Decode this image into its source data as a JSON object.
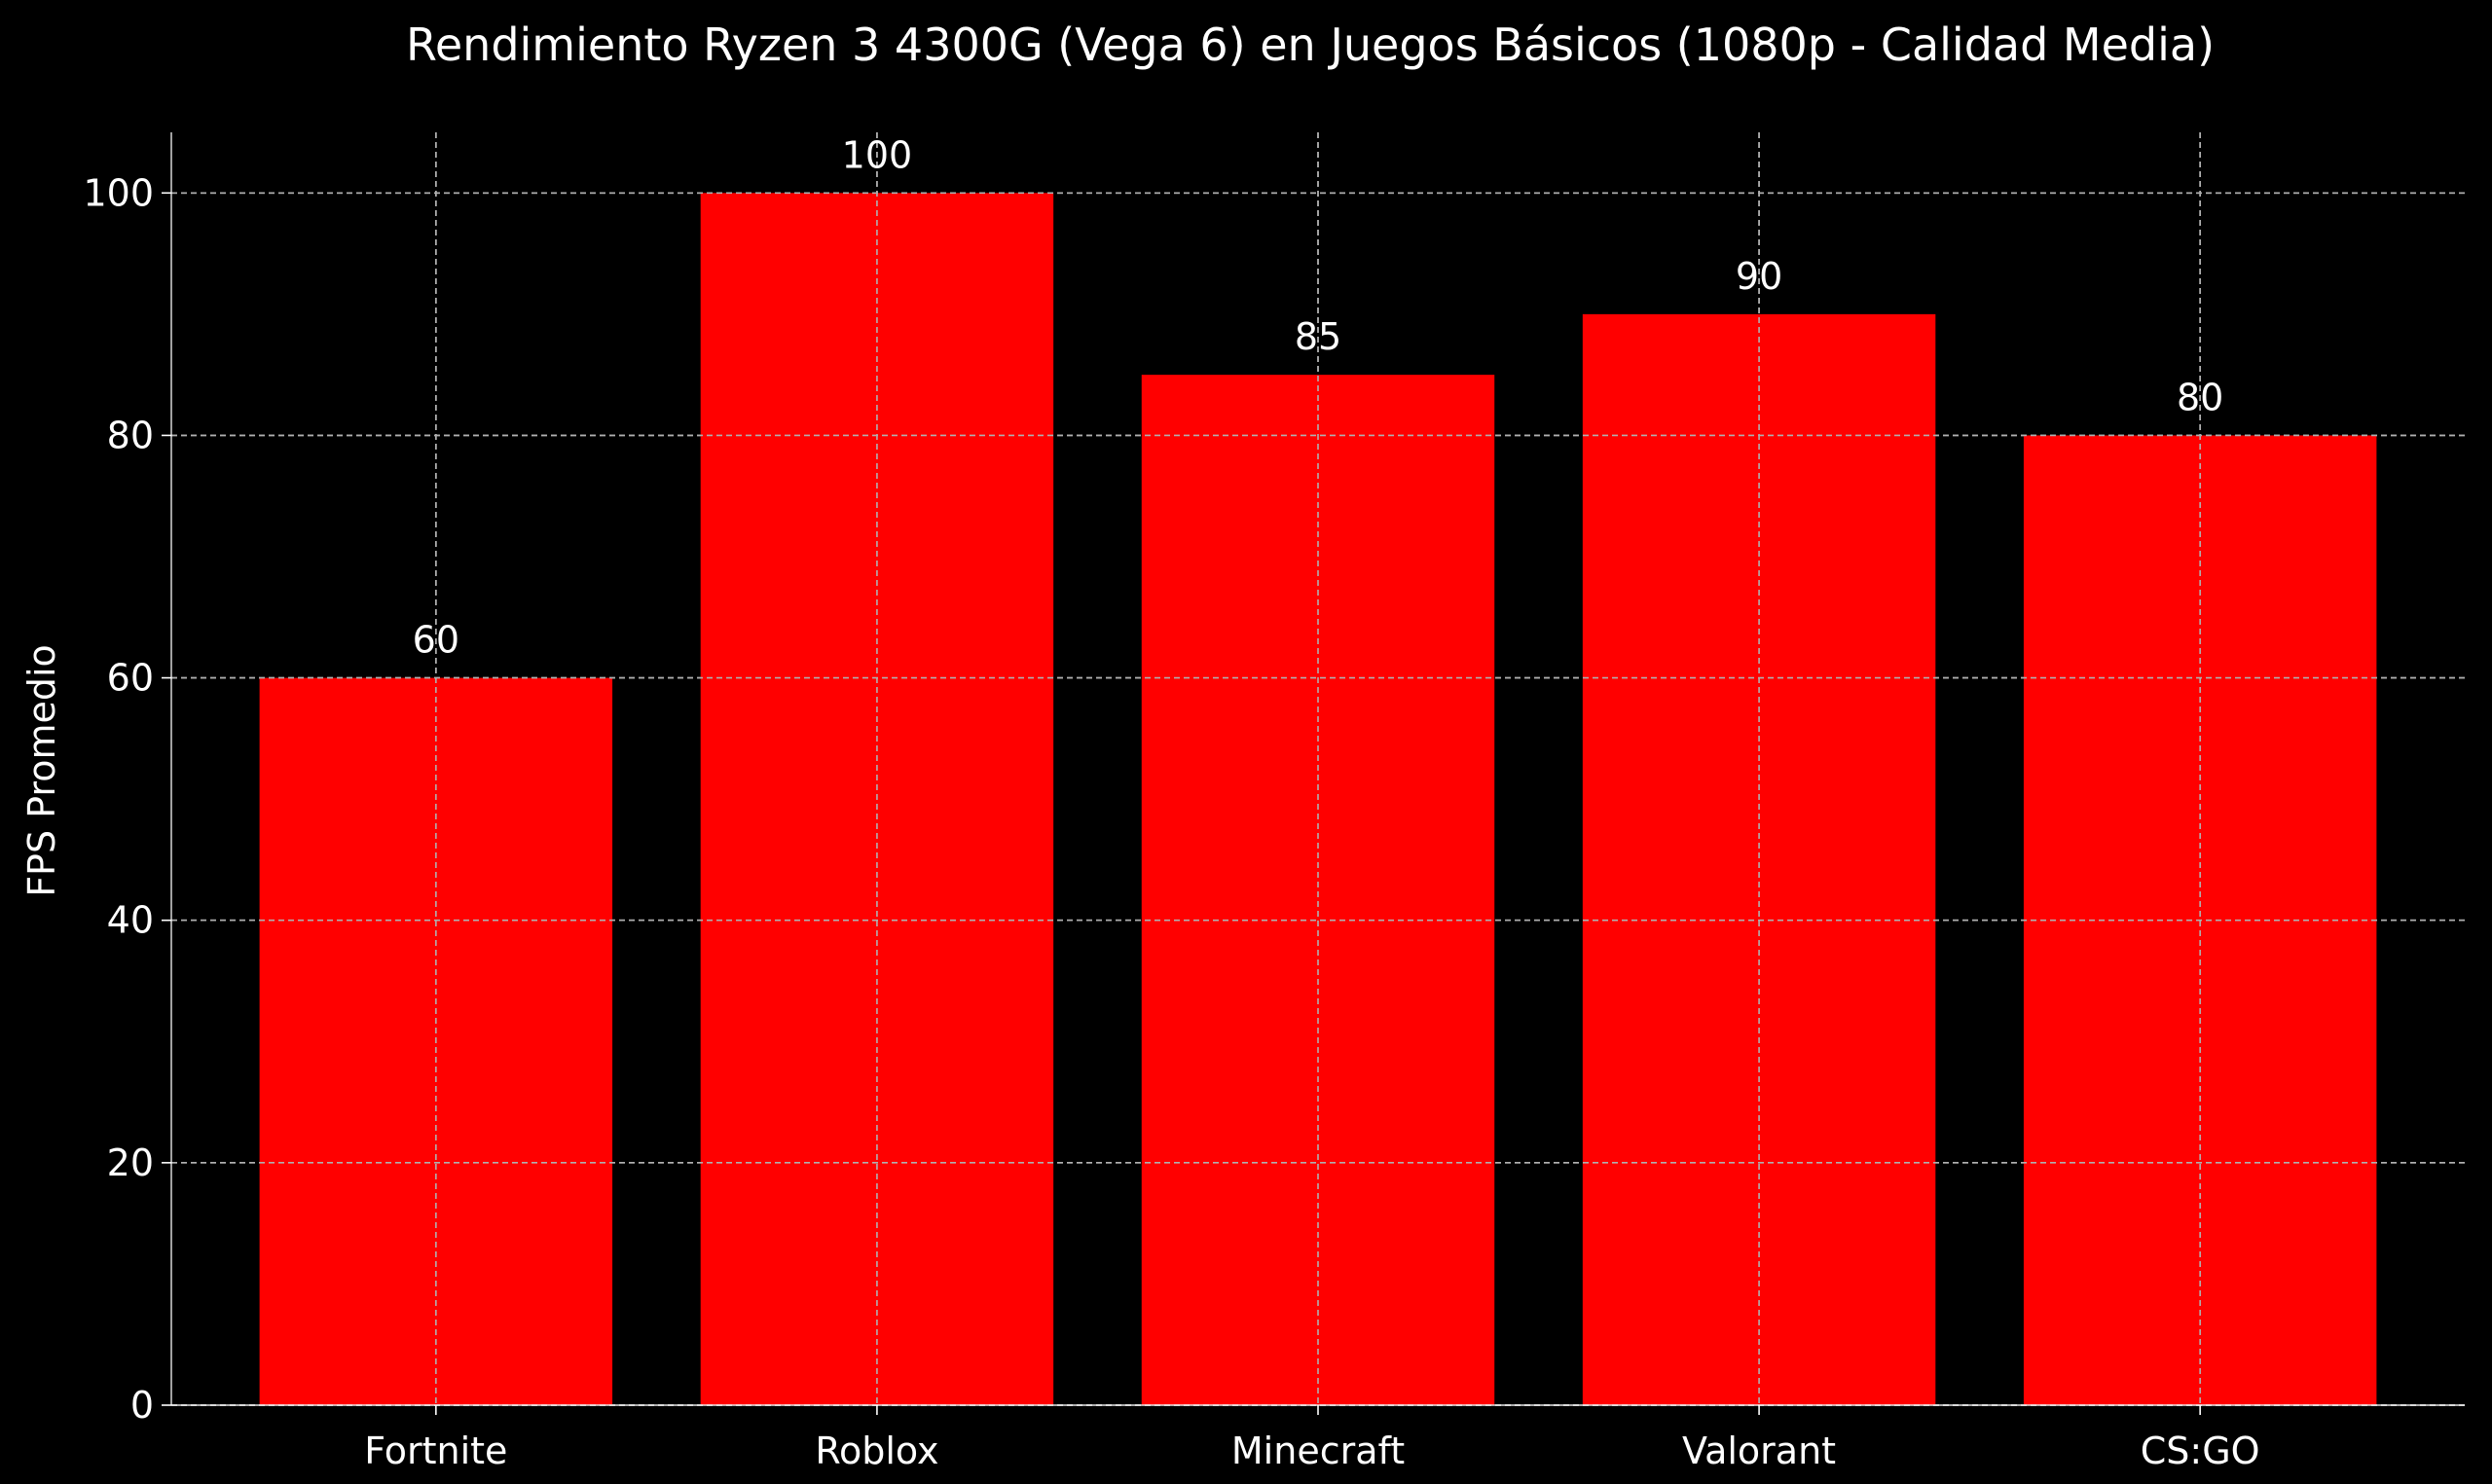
{
  "chart_data": {
    "type": "bar",
    "title": "Rendimiento Ryzen 3 4300G (Vega 6) en Juegos Básicos (1080p - Calidad Media)",
    "xlabel": "",
    "ylabel": "FPS Promedio",
    "categories": [
      "Fortnite",
      "Roblox",
      "Minecraft",
      "Valorant",
      "CS:GO"
    ],
    "values": [
      60,
      100,
      85,
      90,
      80
    ],
    "data_labels": [
      "60",
      "100",
      "85",
      "90",
      "80"
    ],
    "ylim": [
      0,
      105
    ],
    "yticks": [
      0,
      20,
      40,
      60,
      80,
      100
    ],
    "grid": true,
    "bar_color": "#ff0000",
    "background_color": "#000000",
    "text_color": "#ffffff"
  }
}
